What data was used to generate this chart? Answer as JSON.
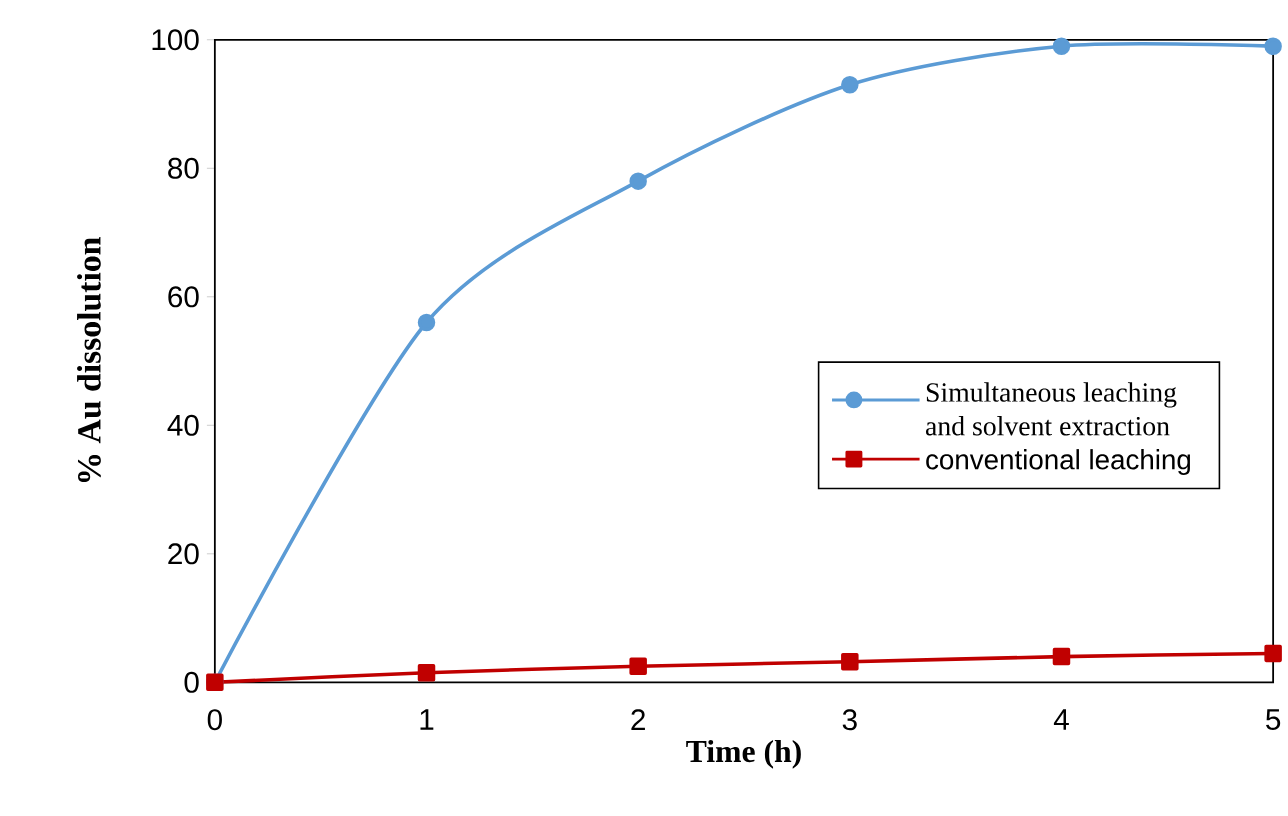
{
  "chart_data": {
    "type": "line",
    "xlabel": "Time (h)",
    "ylabel": "% Au dissolution",
    "x": [
      0,
      1,
      2,
      3,
      4,
      5
    ],
    "xlim": [
      0,
      5
    ],
    "xticks": [
      0,
      1,
      2,
      3,
      4,
      5
    ],
    "ylim": [
      0,
      100
    ],
    "yticks": [
      0,
      20,
      40,
      60,
      80,
      100
    ],
    "series": [
      {
        "name": "Simultaneous leaching and solvent extraction",
        "color": "#5b9bd5",
        "marker": "circle",
        "values": [
          0,
          56,
          78,
          93,
          99,
          99
        ]
      },
      {
        "name": "conventional leaching",
        "color": "#c00000",
        "marker": "square",
        "values": [
          0,
          1.5,
          2.5,
          3.2,
          4,
          4.5
        ]
      }
    ],
    "legend": "right",
    "grid": false
  }
}
